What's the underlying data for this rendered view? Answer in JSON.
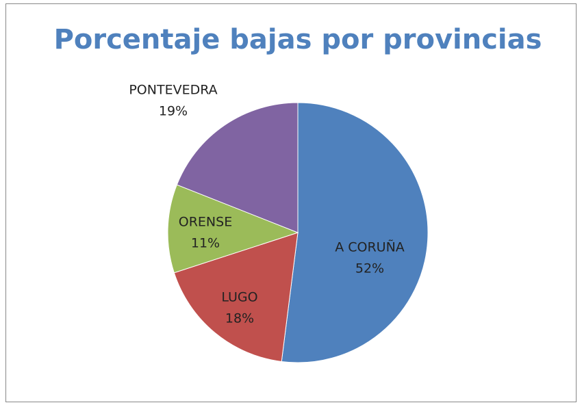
{
  "chart_data": {
    "type": "pie",
    "title": "Porcentaje bajas por provincias",
    "categories": [
      "A CORUÑA",
      "LUGO",
      "ORENSE",
      "PONTEVEDRA"
    ],
    "values": [
      52,
      18,
      11,
      19
    ],
    "value_labels": [
      "52%",
      "18%",
      "11%",
      "19%"
    ],
    "colors": [
      "#4f81bd",
      "#c0504d",
      "#9bbb59",
      "#8064a2"
    ]
  }
}
